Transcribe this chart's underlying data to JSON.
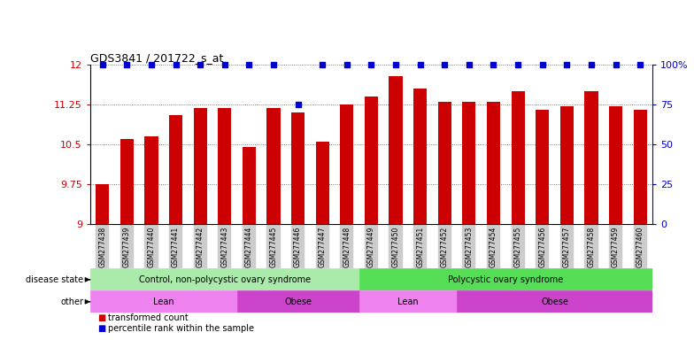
{
  "title": "GDS3841 / 201722_s_at",
  "samples": [
    "GSM277438",
    "GSM277439",
    "GSM277440",
    "GSM277441",
    "GSM277442",
    "GSM277443",
    "GSM277444",
    "GSM277445",
    "GSM277446",
    "GSM277447",
    "GSM277448",
    "GSM277449",
    "GSM277450",
    "GSM277451",
    "GSM277452",
    "GSM277453",
    "GSM277454",
    "GSM277455",
    "GSM277456",
    "GSM277457",
    "GSM277458",
    "GSM277459",
    "GSM277460"
  ],
  "bar_values": [
    9.75,
    10.6,
    10.65,
    11.05,
    11.18,
    11.18,
    10.45,
    11.18,
    11.1,
    10.55,
    11.25,
    11.4,
    11.78,
    11.55,
    11.3,
    11.3,
    11.3,
    11.5,
    11.15,
    11.22,
    11.5,
    11.22,
    11.15
  ],
  "dot_values": [
    100,
    100,
    100,
    100,
    100,
    100,
    100,
    100,
    75,
    100,
    100,
    100,
    100,
    100,
    100,
    100,
    100,
    100,
    100,
    100,
    100,
    100,
    100
  ],
  "bar_color": "#cc0000",
  "dot_color": "#0000cc",
  "ymin": 9.0,
  "ymax": 12.0,
  "yticks": [
    9.0,
    9.75,
    10.5,
    11.25,
    12.0
  ],
  "ytick_labels": [
    "9",
    "9.75",
    "10.5",
    "11.25",
    "12"
  ],
  "right_yticks": [
    0,
    25,
    50,
    75,
    100
  ],
  "right_ytick_labels": [
    "0",
    "25",
    "50",
    "75",
    "100%"
  ],
  "disease_state_groups": [
    {
      "label": "Control, non-polycystic ovary syndrome",
      "start": 0,
      "end": 10,
      "color": "#aaeaaa"
    },
    {
      "label": "Polycystic ovary syndrome",
      "start": 11,
      "end": 22,
      "color": "#55dd55"
    }
  ],
  "other_groups": [
    {
      "label": "Lean",
      "start": 0,
      "end": 5,
      "color": "#ee82ee"
    },
    {
      "label": "Obese",
      "start": 6,
      "end": 10,
      "color": "#cc44cc"
    },
    {
      "label": "Lean",
      "start": 11,
      "end": 14,
      "color": "#ee82ee"
    },
    {
      "label": "Obese",
      "start": 15,
      "end": 22,
      "color": "#cc44cc"
    }
  ],
  "disease_state_label": "disease state",
  "other_label": "other",
  "legend_bar_label": "transformed count",
  "legend_dot_label": "percentile rank within the sample",
  "bg_color": "#ffffff",
  "grid_color": "#555555",
  "axis_bg_color": "#ffffff",
  "tick_bg_color": "#cccccc"
}
